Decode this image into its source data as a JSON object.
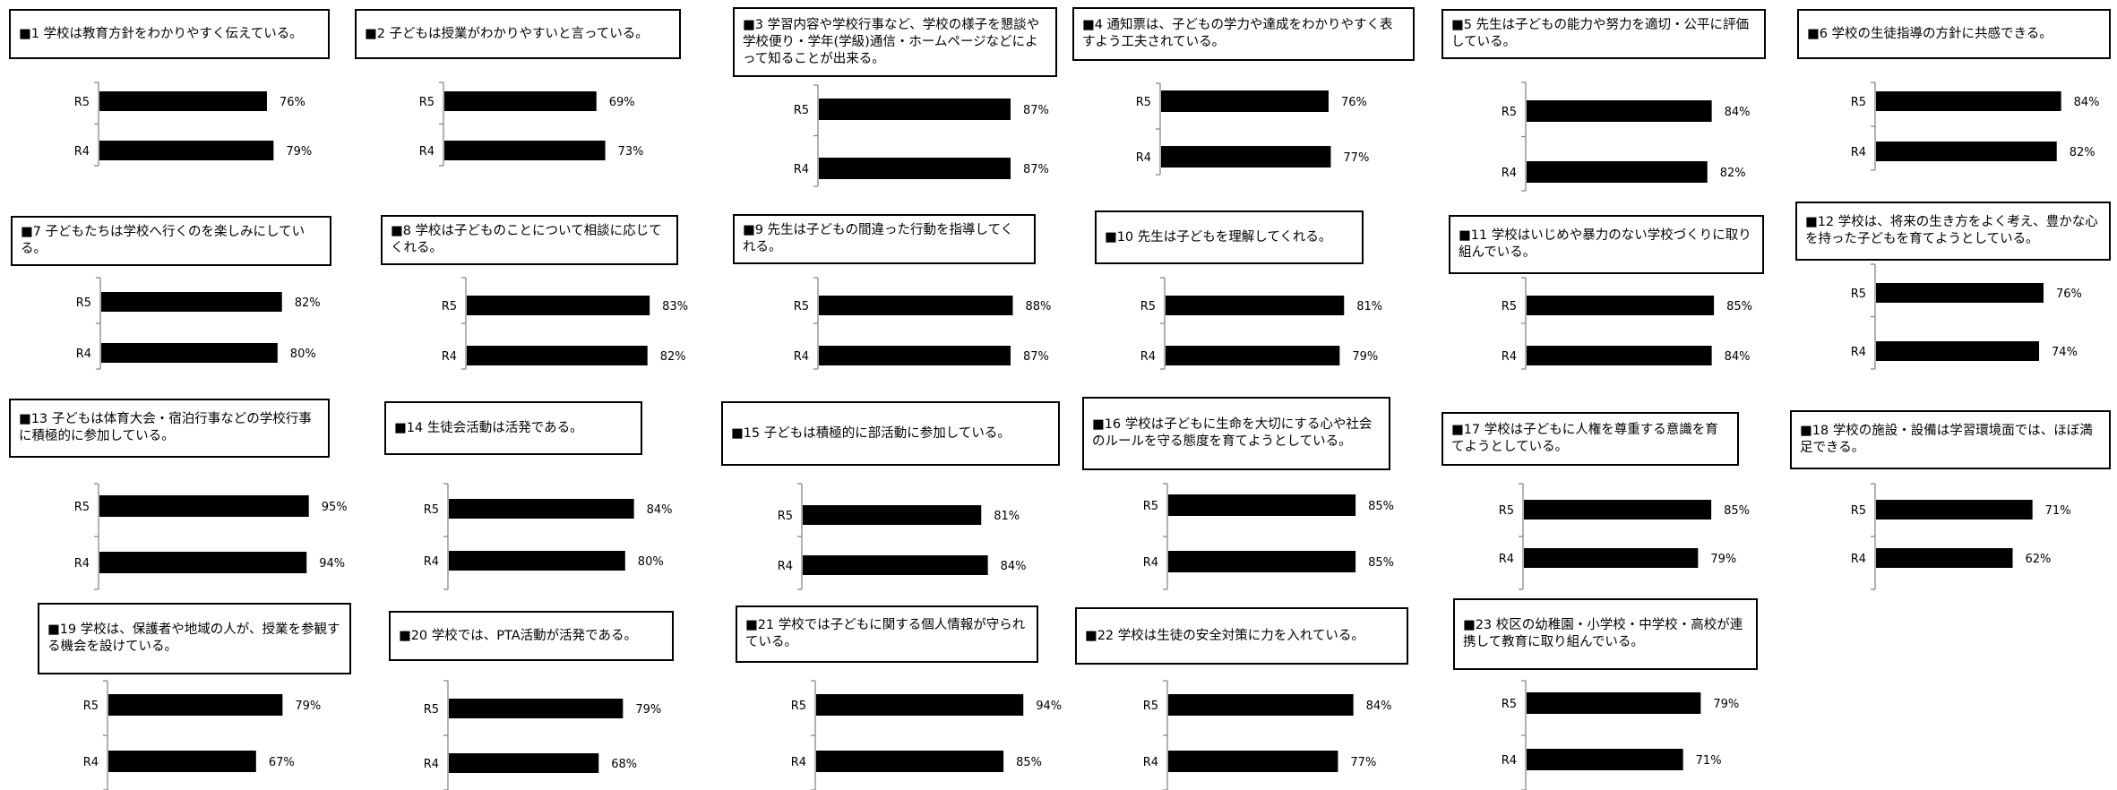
{
  "chart_data": [
    {
      "type": "bar",
      "title": "■1 学校は教育方針をわかりやすく伝えている。",
      "categories": [
        "R5",
        "R4"
      ],
      "values": [
        76,
        79
      ],
      "labels": [
        "76%",
        "79%"
      ]
    },
    {
      "type": "bar",
      "title": "■2 子どもは授業がわかりやすいと言っている。",
      "categories": [
        "R5",
        "R4"
      ],
      "values": [
        69,
        73
      ],
      "labels": [
        "69%",
        "73%"
      ]
    },
    {
      "type": "bar",
      "title": "■3 学習内容や学校行事など、学校の様子を懇談や学校便り・学年(学級)通信・ホームページなどによって知ることが出来る。",
      "categories": [
        "R5",
        "R4"
      ],
      "values": [
        87,
        87
      ],
      "labels": [
        "87%",
        "87%"
      ]
    },
    {
      "type": "bar",
      "title": "■4 通知票は、子どもの学力や達成をわかりやすく表すよう工夫されている。",
      "categories": [
        "R5",
        "R4"
      ],
      "values": [
        76,
        77
      ],
      "labels": [
        "76%",
        "77%"
      ]
    },
    {
      "type": "bar",
      "title": "■5 先生は子どもの能力や努力を適切・公平に評価している。",
      "categories": [
        "R5",
        "R4"
      ],
      "values": [
        84,
        82
      ],
      "labels": [
        "84%",
        "82%"
      ]
    },
    {
      "type": "bar",
      "title": "■6 学校の生徒指導の方針に共感できる。",
      "categories": [
        "R5",
        "R4"
      ],
      "values": [
        84,
        82
      ],
      "labels": [
        "84%",
        "82%"
      ]
    },
    {
      "type": "bar",
      "title": "■7 子どもたちは学校へ行くのを楽しみにしている。",
      "categories": [
        "R5",
        "R4"
      ],
      "values": [
        82,
        80
      ],
      "labels": [
        "82%",
        "80%"
      ]
    },
    {
      "type": "bar",
      "title": "■8 学校は子どものことについて相談に応じてくれる。",
      "categories": [
        "R5",
        "R4"
      ],
      "values": [
        83,
        82
      ],
      "labels": [
        "83%",
        "82%"
      ]
    },
    {
      "type": "bar",
      "title": "■9 先生は子どもの間違った行動を指導してくれる。",
      "categories": [
        "R5",
        "R4"
      ],
      "values": [
        88,
        87
      ],
      "labels": [
        "88%",
        "87%"
      ]
    },
    {
      "type": "bar",
      "title": "■10 先生は子どもを理解してくれる。",
      "categories": [
        "R5",
        "R4"
      ],
      "values": [
        81,
        79
      ],
      "labels": [
        "81%",
        "79%"
      ]
    },
    {
      "type": "bar",
      "title": "■11 学校はいじめや暴力のない学校づくりに取り組んでいる。",
      "categories": [
        "R5",
        "R4"
      ],
      "values": [
        85,
        84
      ],
      "labels": [
        "85%",
        "84%"
      ]
    },
    {
      "type": "bar",
      "title": "■12 学校は、将来の生き方をよく考え、豊かな心を持った子どもを育てようとしている。",
      "categories": [
        "R5",
        "R4"
      ],
      "values": [
        76,
        74
      ],
      "labels": [
        "76%",
        "74%"
      ]
    },
    {
      "type": "bar",
      "title": "■13 子どもは体育大会・宿泊行事などの学校行事に積極的に参加している。",
      "categories": [
        "R5",
        "R4"
      ],
      "values": [
        95,
        94
      ],
      "labels": [
        "95%",
        "94%"
      ]
    },
    {
      "type": "bar",
      "title": "■14 生徒会活動は活発である。",
      "categories": [
        "R5",
        "R4"
      ],
      "values": [
        84,
        80
      ],
      "labels": [
        "84%",
        "80%"
      ]
    },
    {
      "type": "bar",
      "title": "■15 子どもは積極的に部活動に参加している。",
      "categories": [
        "R5",
        "R4"
      ],
      "values": [
        81,
        84
      ],
      "labels": [
        "81%",
        "84%"
      ]
    },
    {
      "type": "bar",
      "title": "■16 学校は子どもに生命を大切にする心や社会のルールを守る態度を育てようとしている。",
      "categories": [
        "R5",
        "R4"
      ],
      "values": [
        85,
        85
      ],
      "labels": [
        "85%",
        "85%"
      ]
    },
    {
      "type": "bar",
      "title": "■17 学校は子どもに人権を尊重する意識を育てようとしている。",
      "categories": [
        "R5",
        "R4"
      ],
      "values": [
        85,
        79
      ],
      "labels": [
        "85%",
        "79%"
      ]
    },
    {
      "type": "bar",
      "title": "■18 学校の施設・設備は学習環境面では、ほぼ満足できる。",
      "categories": [
        "R5",
        "R4"
      ],
      "values": [
        71,
        62
      ],
      "labels": [
        "71%",
        "62%"
      ]
    },
    {
      "type": "bar",
      "title": "■19 学校は、保護者や地域の人が、授業を参観する機会を設けている。",
      "categories": [
        "R5",
        "R4"
      ],
      "values": [
        79,
        67
      ],
      "labels": [
        "79%",
        "67%"
      ]
    },
    {
      "type": "bar",
      "title": "■20 学校では、PTA活動が活発である。",
      "categories": [
        "R5",
        "R4"
      ],
      "values": [
        79,
        68
      ],
      "labels": [
        "79%",
        "68%"
      ]
    },
    {
      "type": "bar",
      "title": "■21 学校では子どもに関する個人情報が守られている。",
      "categories": [
        "R5",
        "R4"
      ],
      "values": [
        94,
        85
      ],
      "labels": [
        "94%",
        "85%"
      ]
    },
    {
      "type": "bar",
      "title": "■22 学校は生徒の安全対策に力を入れている。",
      "categories": [
        "R5",
        "R4"
      ],
      "values": [
        84,
        77
      ],
      "labels": [
        "84%",
        "77%"
      ]
    },
    {
      "type": "bar",
      "title": "■23 校区の幼稚園・小学校・中学校・高校が連携して教育に取り組んでいる。",
      "categories": [
        "R5",
        "R4"
      ],
      "values": [
        79,
        71
      ],
      "labels": [
        "79%",
        "71%"
      ]
    }
  ]
}
